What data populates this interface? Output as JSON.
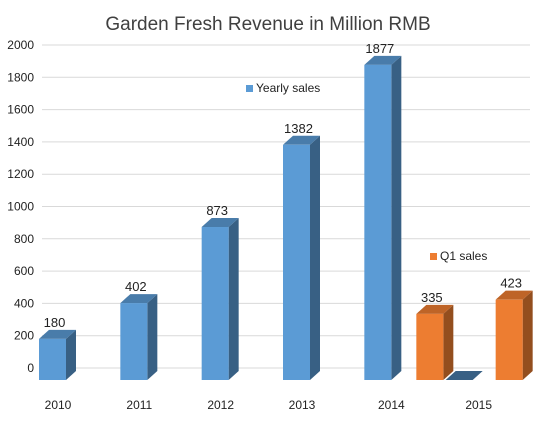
{
  "chart_data": {
    "type": "bar",
    "title": "Garden Fresh Revenue in Million RMB",
    "categories": [
      "2010",
      "2011",
      "2012",
      "2013",
      "2014",
      "2015"
    ],
    "series": [
      {
        "name": "Yearly sales",
        "values": [
          180,
          402,
          873,
          1382,
          1877,
          0
        ],
        "labels": [
          "180",
          "402",
          "873",
          "1382",
          "1877",
          ""
        ],
        "color": "#5b9bd5"
      },
      {
        "name": "Q1 sales",
        "values": [
          null,
          null,
          null,
          null,
          335,
          423
        ],
        "labels": [
          "",
          "",
          "",
          "",
          "335",
          "423"
        ],
        "color": "#ed7d31"
      }
    ],
    "ylim": [
      0,
      2000
    ],
    "yticks": [
      "0",
      "200",
      "400",
      "600",
      "800",
      "1000",
      "1200",
      "1400",
      "1600",
      "1800",
      "2000"
    ],
    "grid": true,
    "style": "3d-column",
    "legend": "in-plot"
  }
}
